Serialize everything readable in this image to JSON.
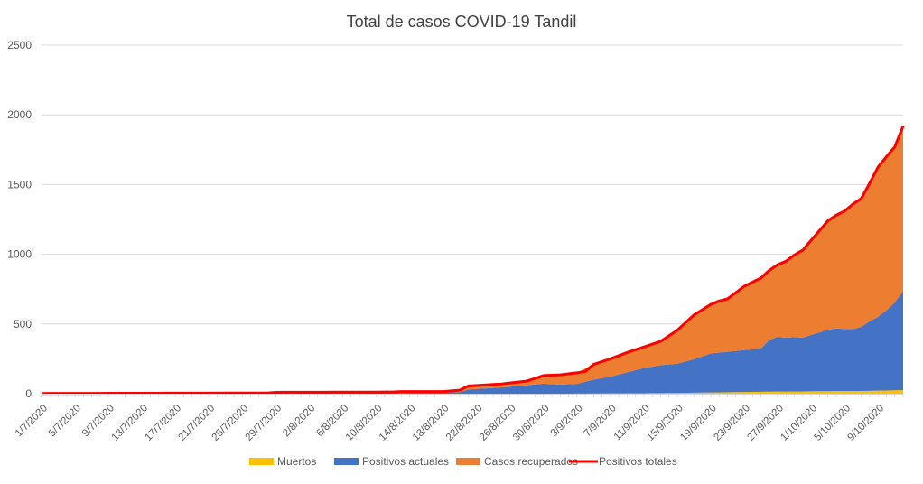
{
  "chart_data": {
    "type": "area",
    "title": "Total de casos COVID-19 Tandil",
    "xlabel": "",
    "ylabel": "",
    "ylim": [
      0,
      2500
    ],
    "yticks": [
      0,
      500,
      1000,
      1500,
      2000,
      2500
    ],
    "grid": true,
    "legend_position": "bottom",
    "stacked": true,
    "x_start": "1/7/2020",
    "x_end": "12/10/2020",
    "x_tick_labels": [
      "1/7/2020",
      "5/7/2020",
      "9/7/2020",
      "13/7/2020",
      "17/7/2020",
      "21/7/2020",
      "25/7/2020",
      "29/7/2020",
      "2/8/2020",
      "6/8/2020",
      "10/8/2020",
      "14/8/2020",
      "18/8/2020",
      "22/8/2020",
      "26/8/2020",
      "30/8/2020",
      "3/9/2020",
      "7/9/2020",
      "11/9/2020",
      "15/9/2020",
      "19/9/2020",
      "23/9/2020",
      "27/9/2020",
      "1/10/2020",
      "5/10/2020",
      "9/10/2020"
    ],
    "series": [
      {
        "name": "Muertos",
        "kind": "area",
        "color": "#FFC000",
        "points": [
          [
            "1/7/2020",
            0
          ],
          [
            "1/9/2020",
            0
          ],
          [
            "15/9/2020",
            5
          ],
          [
            "20/9/2020",
            10
          ],
          [
            "27/9/2020",
            15
          ],
          [
            "1/10/2020",
            17
          ],
          [
            "8/10/2020",
            20
          ],
          [
            "12/10/2020",
            26
          ]
        ]
      },
      {
        "name": "Positivos actuales",
        "kind": "area",
        "color": "#4472C4",
        "points": [
          [
            "1/7/2020",
            0
          ],
          [
            "28/7/2020",
            2
          ],
          [
            "13/8/2020",
            6
          ],
          [
            "20/8/2020",
            10
          ],
          [
            "21/8/2020",
            30
          ],
          [
            "25/8/2020",
            45
          ],
          [
            "28/8/2020",
            60
          ],
          [
            "30/8/2020",
            72
          ],
          [
            "1/9/2020",
            65
          ],
          [
            "3/9/2020",
            70
          ],
          [
            "5/9/2020",
            100
          ],
          [
            "7/9/2020",
            120
          ],
          [
            "9/9/2020",
            150
          ],
          [
            "11/9/2020",
            180
          ],
          [
            "13/9/2020",
            200
          ],
          [
            "15/9/2020",
            210
          ],
          [
            "17/9/2020",
            240
          ],
          [
            "19/9/2020",
            280
          ],
          [
            "21/9/2020",
            290
          ],
          [
            "23/9/2020",
            300
          ],
          [
            "25/9/2020",
            310
          ],
          [
            "26/9/2020",
            370
          ],
          [
            "27/9/2020",
            395
          ],
          [
            "28/9/2020",
            385
          ],
          [
            "29/9/2020",
            390
          ],
          [
            "30/9/2020",
            385
          ],
          [
            "1/10/2020",
            405
          ],
          [
            "3/10/2020",
            440
          ],
          [
            "4/10/2020",
            450
          ],
          [
            "5/10/2020",
            445
          ],
          [
            "6/10/2020",
            445
          ],
          [
            "7/10/2020",
            460
          ],
          [
            "8/10/2020",
            500
          ],
          [
            "9/10/2020",
            530
          ],
          [
            "10/10/2020",
            575
          ],
          [
            "11/10/2020",
            630
          ],
          [
            "12/10/2020",
            710
          ]
        ]
      },
      {
        "name": "Casos recuperados",
        "kind": "area",
        "color": "#ED7D31",
        "points": [
          [
            "1/7/2020",
            0
          ],
          [
            "28/7/2020",
            3
          ],
          [
            "13/8/2020",
            2
          ],
          [
            "20/8/2020",
            10
          ],
          [
            "21/8/2020",
            25
          ],
          [
            "25/8/2020",
            25
          ],
          [
            "28/8/2020",
            30
          ],
          [
            "30/8/2020",
            58
          ],
          [
            "1/9/2020",
            70
          ],
          [
            "3/9/2020",
            80
          ],
          [
            "5/9/2020",
            110
          ],
          [
            "7/9/2020",
            130
          ],
          [
            "9/9/2020",
            145
          ],
          [
            "11/9/2020",
            155
          ],
          [
            "13/9/2020",
            175
          ],
          [
            "15/9/2020",
            240
          ],
          [
            "17/9/2020",
            320
          ],
          [
            "19/9/2020",
            350
          ],
          [
            "21/9/2020",
            380
          ],
          [
            "23/9/2020",
            460
          ],
          [
            "25/9/2020",
            515
          ],
          [
            "26/9/2020",
            500
          ],
          [
            "27/9/2020",
            515
          ],
          [
            "28/9/2020",
            550
          ],
          [
            "29/9/2020",
            590
          ],
          [
            "30/9/2020",
            630
          ],
          [
            "1/10/2020",
            678
          ],
          [
            "3/10/2020",
            780
          ],
          [
            "4/10/2020",
            810
          ],
          [
            "5/10/2020",
            850
          ],
          [
            "6/10/2020",
            900
          ],
          [
            "7/10/2020",
            920
          ],
          [
            "8/10/2020",
            990
          ],
          [
            "9/10/2020",
            1070
          ],
          [
            "10/10/2020",
            1095
          ],
          [
            "11/10/2020",
            1110
          ],
          [
            "12/10/2020",
            1186
          ]
        ]
      },
      {
        "name": "Positivos totales",
        "kind": "line",
        "color": "#FF0000",
        "points": [
          [
            "1/7/2020",
            2
          ],
          [
            "28/7/2020",
            5
          ],
          [
            "29/7/2020",
            10
          ],
          [
            "12/8/2020",
            12
          ],
          [
            "13/8/2020",
            15
          ],
          [
            "18/8/2020",
            15
          ],
          [
            "20/8/2020",
            25
          ],
          [
            "21/8/2020",
            55
          ],
          [
            "25/8/2020",
            70
          ],
          [
            "28/8/2020",
            90
          ],
          [
            "30/8/2020",
            130
          ],
          [
            "1/9/2020",
            135
          ],
          [
            "3/9/2020",
            150
          ],
          [
            "4/9/2020",
            160
          ],
          [
            "5/9/2020",
            210
          ],
          [
            "7/9/2020",
            250
          ],
          [
            "9/9/2020",
            295
          ],
          [
            "11/9/2020",
            335
          ],
          [
            "13/9/2020",
            375
          ],
          [
            "15/9/2020",
            455
          ],
          [
            "17/9/2020",
            565
          ],
          [
            "19/9/2020",
            640
          ],
          [
            "20/9/2020",
            665
          ],
          [
            "21/9/2020",
            680
          ],
          [
            "23/9/2020",
            770
          ],
          [
            "25/9/2020",
            830
          ],
          [
            "26/9/2020",
            885
          ],
          [
            "27/9/2020",
            925
          ],
          [
            "28/9/2020",
            950
          ],
          [
            "29/9/2020",
            995
          ],
          [
            "30/9/2020",
            1030
          ],
          [
            "1/10/2020",
            1100
          ],
          [
            "3/10/2020",
            1240
          ],
          [
            "4/10/2020",
            1280
          ],
          [
            "5/10/2020",
            1310
          ],
          [
            "6/10/2020",
            1360
          ],
          [
            "7/10/2020",
            1400
          ],
          [
            "8/10/2020",
            1510
          ],
          [
            "9/10/2020",
            1625
          ],
          [
            "10/10/2020",
            1700
          ],
          [
            "11/10/2020",
            1770
          ],
          [
            "12/10/2020",
            1920
          ]
        ]
      }
    ]
  }
}
